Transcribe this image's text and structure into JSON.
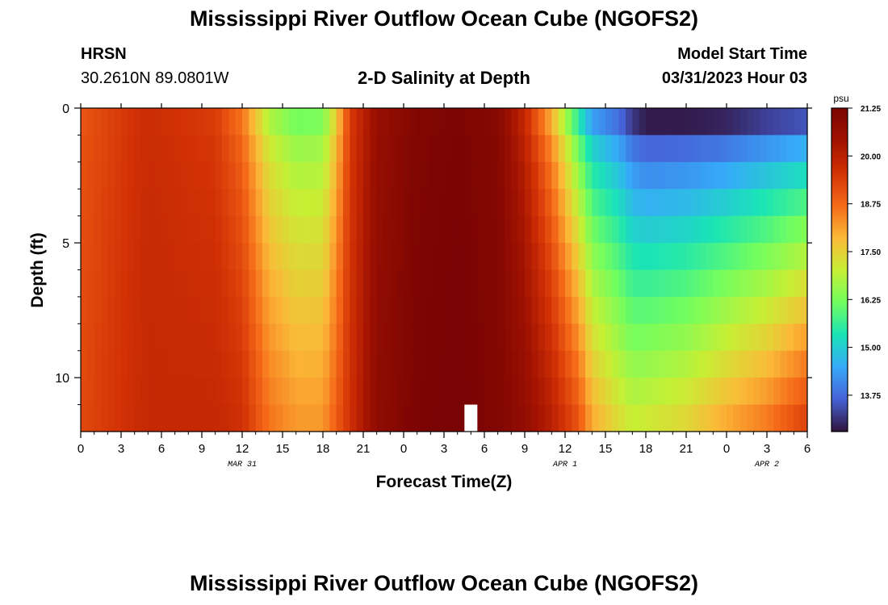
{
  "header": {
    "title": "Mississippi River Outflow Ocean Cube (NGOFS2)",
    "station_code": "HRSN",
    "station_coords": "30.2610N  89.0801W",
    "subtitle": "2-D Salinity at Depth",
    "model_start_label": "Model Start Time",
    "model_start_value": "03/31/2023 Hour 03"
  },
  "footer": {
    "title": "Mississippi River Outflow Ocean Cube (NGOFS2)"
  },
  "chart_data": {
    "type": "heatmap",
    "title": "2-D Salinity at Depth",
    "xlabel": "Forecast Time(Z)",
    "ylabel": "Depth (ft)",
    "x_range": [
      0,
      54
    ],
    "y_range": [
      0,
      12
    ],
    "y_inverted": true,
    "x_ticks": [
      0,
      3,
      6,
      9,
      12,
      15,
      18,
      21,
      24,
      27,
      30,
      33,
      36,
      39,
      42,
      45,
      48,
      51,
      54
    ],
    "x_tick_labels": [
      "0",
      "3",
      "6",
      "9",
      "12",
      "15",
      "18",
      "21",
      "0",
      "3",
      "6",
      "9",
      "12",
      "15",
      "18",
      "21",
      "0",
      "3",
      "6"
    ],
    "y_ticks": [
      0,
      5,
      10
    ],
    "y_tick_labels": [
      "0",
      "5",
      "10"
    ],
    "date_labels": [
      {
        "text": "MAR 31",
        "x": 12
      },
      {
        "text": "APR 1",
        "x": 36
      },
      {
        "text": "APR 2",
        "x": 51
      }
    ],
    "colorbar": {
      "unit": "psu",
      "min": 12.8,
      "max": 21.25,
      "ticks": [
        "21.25",
        "20.00",
        "18.75",
        "17.50",
        "16.25",
        "15.00",
        "13.75"
      ],
      "tick_values": [
        21.25,
        20.0,
        18.75,
        17.5,
        16.25,
        15.0,
        13.75
      ]
    },
    "depth_levels": [
      0.5,
      1.5,
      2.5,
      3.5,
      4.5,
      5.5,
      6.5,
      7.5,
      8.5,
      9.5,
      10.5,
      11.5
    ],
    "time_key": [
      {
        "x": 0,
        "top": 19.0,
        "bottom": 19.2
      },
      {
        "x": 5,
        "top": 19.7,
        "bottom": 19.8
      },
      {
        "x": 10,
        "top": 19.4,
        "bottom": 19.8
      },
      {
        "x": 12,
        "top": 18.6,
        "bottom": 19.6
      },
      {
        "x": 14,
        "top": 16.8,
        "bottom": 18.6
      },
      {
        "x": 16,
        "top": 16.2,
        "bottom": 18.2
      },
      {
        "x": 18,
        "top": 16.3,
        "bottom": 18.2
      },
      {
        "x": 19,
        "top": 17.6,
        "bottom": 18.9
      },
      {
        "x": 20,
        "top": 19.4,
        "bottom": 19.6
      },
      {
        "x": 22,
        "top": 20.6,
        "bottom": 20.8
      },
      {
        "x": 25,
        "top": 21.1,
        "bottom": 21.2
      },
      {
        "x": 28,
        "top": 21.2,
        "bottom": 21.3
      },
      {
        "x": 31,
        "top": 21.0,
        "bottom": 21.1
      },
      {
        "x": 33,
        "top": 19.8,
        "bottom": 20.7
      },
      {
        "x": 35,
        "top": 18.0,
        "bottom": 20.0
      },
      {
        "x": 37,
        "top": 15.5,
        "bottom": 19.0
      },
      {
        "x": 38,
        "top": 14.4,
        "bottom": 18.0
      },
      {
        "x": 40,
        "top": 13.8,
        "bottom": 17.3
      },
      {
        "x": 41,
        "top": 13.2,
        "bottom": 17.0
      },
      {
        "x": 42,
        "top": 12.9,
        "bottom": 17.1
      },
      {
        "x": 45,
        "top": 12.9,
        "bottom": 17.4
      },
      {
        "x": 48,
        "top": 13.0,
        "bottom": 18.0
      },
      {
        "x": 51,
        "top": 13.3,
        "bottom": 18.5
      },
      {
        "x": 54,
        "top": 13.5,
        "bottom": 19.3
      }
    ],
    "missing_cells": [
      {
        "x": 29,
        "depth": 11.5
      }
    ],
    "grid": false
  }
}
